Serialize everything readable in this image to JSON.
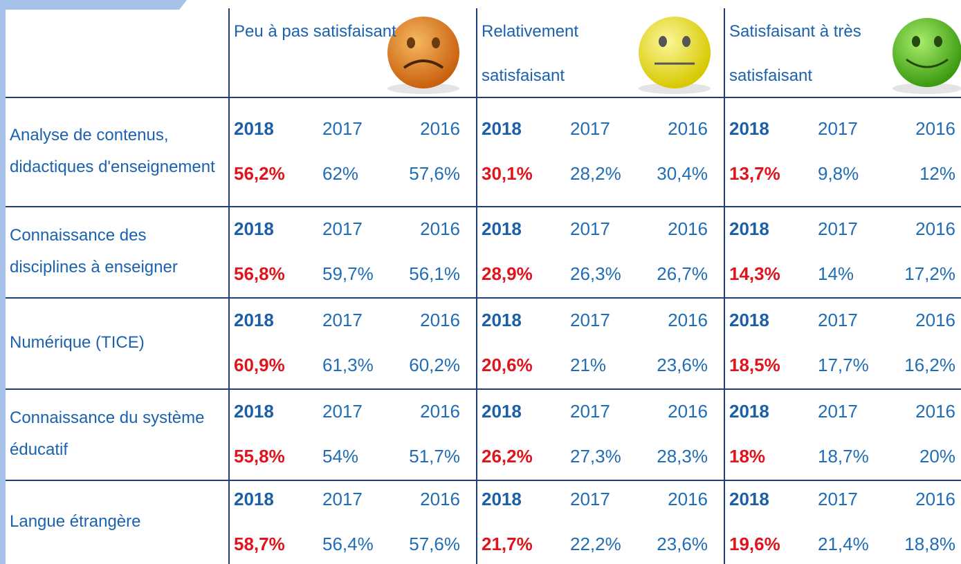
{
  "header": {
    "groups": [
      {
        "label": "Peu à pas satisfaisant"
      },
      {
        "label": "Relativement satisfaisant"
      },
      {
        "label": "Satisfaisant à très satisfaisant"
      }
    ]
  },
  "years": [
    "2018",
    "2017",
    "2016"
  ],
  "table": {
    "rows": [
      {
        "label": "Analyse de contenus, didactiques d'enseignement",
        "values": [
          [
            "56,2%",
            "62%",
            "57,6%"
          ],
          [
            "30,1%",
            "28,2%",
            "30,4%"
          ],
          [
            "13,7%",
            "9,8%",
            "12%"
          ]
        ]
      },
      {
        "label": "Connaissance des disciplines à enseigner",
        "values": [
          [
            "56,8%",
            "59,7%",
            "56,1%"
          ],
          [
            "28,9%",
            "26,3%",
            "26,7%"
          ],
          [
            "14,3%",
            "14%",
            "17,2%"
          ]
        ]
      },
      {
        "label": "Numérique (TICE)",
        "values": [
          [
            "60,9%",
            "61,3%",
            "60,2%"
          ],
          [
            "20,6%",
            "21%",
            "23,6%"
          ],
          [
            "18,5%",
            "17,7%",
            "16,2%"
          ]
        ]
      },
      {
        "label": "Connaissance du système éducatif",
        "values": [
          [
            "55,8%",
            "54%",
            "51,7%"
          ],
          [
            "26,2%",
            "27,3%",
            "28,3%"
          ],
          [
            "18%",
            "18,7%",
            "20%"
          ]
        ]
      },
      {
        "label": "Langue étrangère",
        "values": [
          [
            "58,7%",
            "56,4%",
            "57,6%"
          ],
          [
            "21,7%",
            "22,2%",
            "23,6%"
          ],
          [
            "19,6%",
            "21,4%",
            "18,8%"
          ]
        ]
      }
    ]
  }
}
